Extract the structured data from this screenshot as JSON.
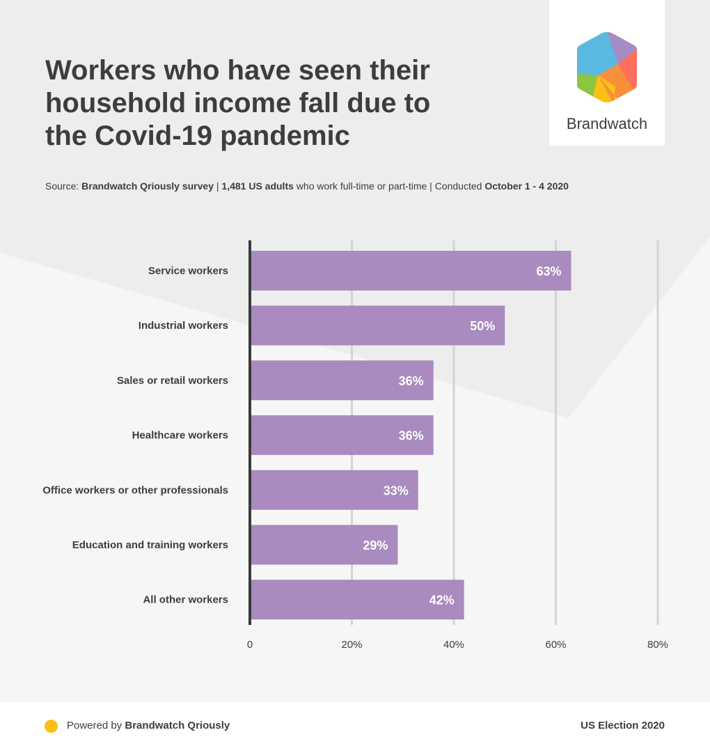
{
  "title_lines": [
    "Workers who have seen their",
    "household income fall due to",
    "the Covid-19 pandemic"
  ],
  "source": {
    "prefix": "Source: ",
    "survey": "Brandwatch Qriously survey",
    "sep1": " | ",
    "sample": "1,481 US adults",
    "audience": " who work full-time or part-time | Conducted ",
    "dates": "October 1 - 4 2020"
  },
  "logo": {
    "name": "Brandwatch",
    "icon": "brandwatch-hexagon-logo"
  },
  "footer": {
    "powered_prefix": "Powered by ",
    "powered_brand": "Brandwatch Qriously",
    "right": "US Election 2020",
    "dot_color": "#fbbf16"
  },
  "colors": {
    "bar": "#a98bbf",
    "bar_label": "#ffffff",
    "grid": "#d4d4d4",
    "axis": "#3a3a3a",
    "text": "#3d3d3d"
  },
  "chart_data": {
    "type": "bar",
    "orientation": "horizontal",
    "categories": [
      "Service workers",
      "Industrial workers",
      "Sales or retail workers",
      "Healthcare workers",
      "Office workers or other professionals",
      "Education and training workers",
      "All other workers"
    ],
    "values": [
      63,
      50,
      36,
      36,
      33,
      29,
      42
    ],
    "value_labels": [
      "63%",
      "50%",
      "36%",
      "36%",
      "33%",
      "29%",
      "42%"
    ],
    "xlim": [
      0,
      80
    ],
    "ticks": [
      0,
      20,
      40,
      60,
      80
    ],
    "tick_labels": [
      "0",
      "20%",
      "40%",
      "60%",
      "80%"
    ],
    "grid": true,
    "title": "Workers who have seen their household income fall due to the Covid-19 pandemic",
    "xlabel": "",
    "ylabel": ""
  }
}
